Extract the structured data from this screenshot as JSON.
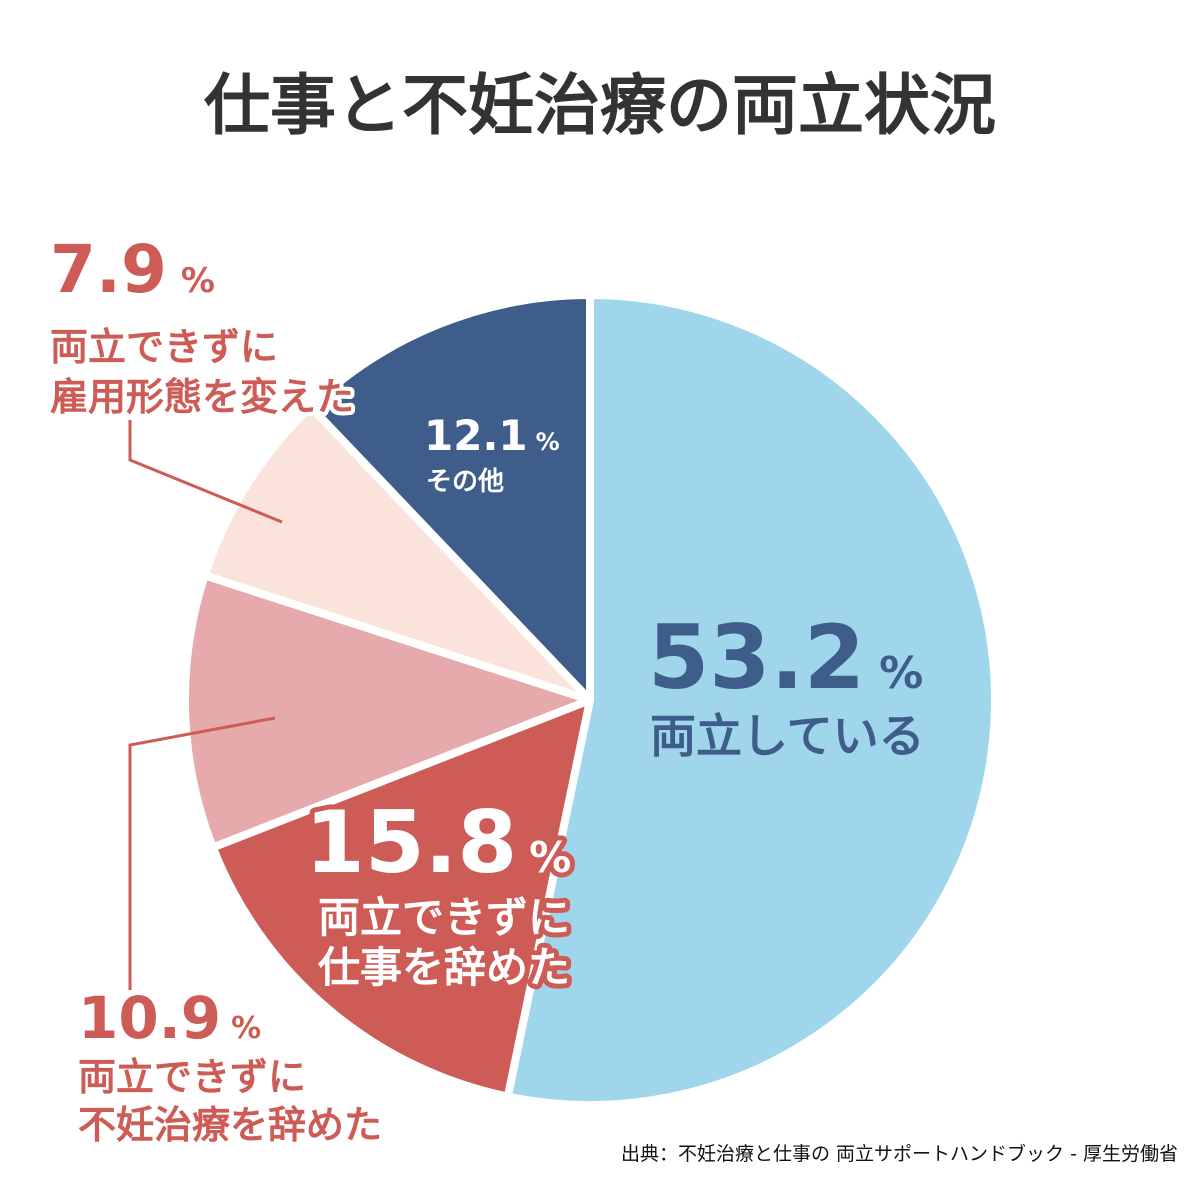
{
  "chart_data": {
    "type": "pie",
    "title": "仕事と不妊治療の両立状況",
    "start": "top",
    "direction": "clockwise",
    "slices": [
      {
        "value": 53.2,
        "pct": "53.2",
        "label_lines": [
          "両立している"
        ],
        "color": "#a0d6eb"
      },
      {
        "value": 15.8,
        "pct": "15.8",
        "label_lines": [
          "両立できずに",
          "仕事を辞めた"
        ],
        "color": "#cd5c57"
      },
      {
        "value": 10.9,
        "pct": "10.9",
        "label_lines": [
          "両立できずに",
          "不妊治療を辞めた"
        ],
        "color": "#e6a9ac"
      },
      {
        "value": 7.9,
        "pct": "7.9",
        "label_lines": [
          "両立できずに",
          "雇用形態を変えた"
        ],
        "color": "#f9e3da"
      },
      {
        "value": 12.1,
        "pct": "12.1",
        "label_lines": [
          "その他"
        ],
        "color": "#3f5d8b"
      }
    ],
    "unit": "%",
    "source": "出典：不妊治療と仕事の 両立サポートハンドブック - 厚生労働省"
  },
  "colors": {
    "title": "#333333",
    "label_red": "#cd5c57",
    "label_navy": "#3f5d8b",
    "white": "#ffffff"
  }
}
